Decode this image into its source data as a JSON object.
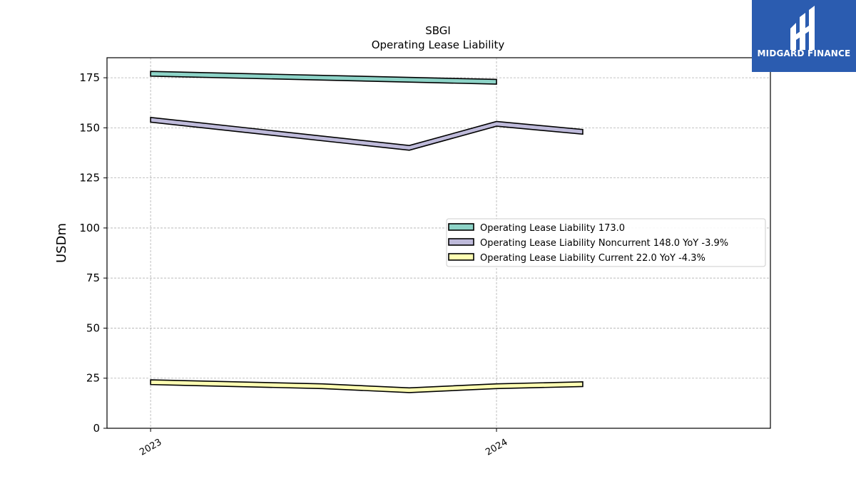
{
  "chart_data": {
    "type": "line",
    "title": "SBGI",
    "subtitle": "Operating Lease Liability",
    "ylabel": "USDm",
    "xlabel": "",
    "ylim": [
      0,
      185
    ],
    "yticks": [
      0,
      25,
      50,
      75,
      100,
      125,
      150,
      175
    ],
    "xlim": [
      "2022-11-15",
      "2024-10-15"
    ],
    "xticks": [
      {
        "date": "2022-12-31",
        "label": "2023"
      },
      {
        "date": "2023-12-31",
        "label": "2024"
      }
    ],
    "grid": true,
    "legend_position": "center-right",
    "series": [
      {
        "name": "Operating Lease Liability",
        "legend": "Operating Lease Liability  173.0",
        "color": "#8dd3c7",
        "x": [
          "2022-12-31",
          "2023-12-31"
        ],
        "values": [
          177.0,
          173.0
        ]
      },
      {
        "name": "Operating Lease Liability Noncurrent",
        "legend": "Operating Lease Liability Noncurrent  148.0 YoY -3.9%",
        "color": "#bebada",
        "x": [
          "2022-12-31",
          "2023-09-30",
          "2023-12-31",
          "2024-03-31"
        ],
        "values": [
          154.0,
          140.0,
          152.0,
          148.0
        ]
      },
      {
        "name": "Operating Lease Liability Current",
        "legend": "Operating Lease Liability Current  22.0 YoY -4.3%",
        "color": "#ffffb3",
        "x": [
          "2022-12-31",
          "2023-06-30",
          "2023-09-30",
          "2023-12-31",
          "2024-03-31"
        ],
        "values": [
          23.0,
          21.0,
          19.0,
          21.0,
          22.0
        ]
      }
    ]
  },
  "logo": {
    "text": "MIDGARD FINANCE"
  }
}
